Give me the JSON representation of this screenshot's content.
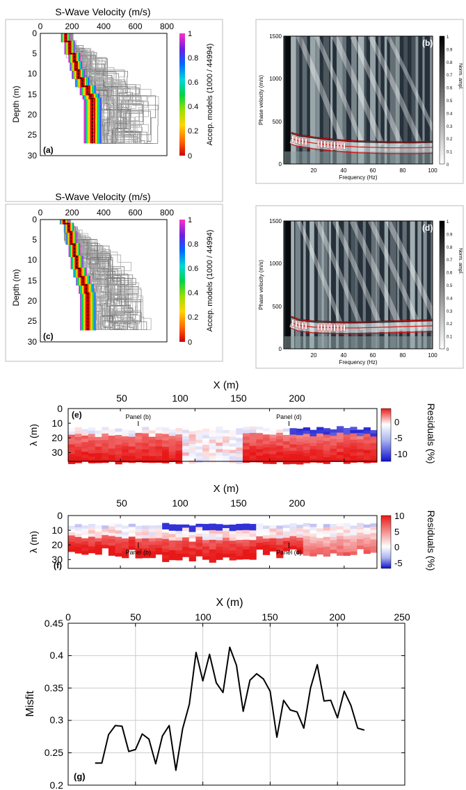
{
  "colors": {
    "ink": "#000000",
    "grid": "#cccccc",
    "model_gray": "#a9a9a9",
    "pick_red": "#e01010"
  },
  "chart_data": [
    {
      "panel": "a",
      "type": "line",
      "title": "S-Wave Velocity (m/s)",
      "ylabel": "Depth (m)",
      "xticks": [
        "0",
        "200",
        "400",
        "600",
        "800"
      ],
      "yticks": [
        "0",
        "5",
        "10",
        "15",
        "20",
        "25",
        "30"
      ],
      "xlim": [
        0,
        800
      ],
      "ylim": [
        0,
        30
      ],
      "colorbar": {
        "label": "Accep. models (1000 / 44994)",
        "ticks": [
          "1",
          "0.8",
          "0.6",
          "0.4",
          "0.2",
          "0"
        ]
      },
      "best_profile": {
        "depth": [
          0,
          2,
          5,
          7,
          9,
          11,
          13,
          15,
          16,
          27
        ],
        "vs": [
          160,
          185,
          215,
          225,
          240,
          265,
          300,
          320,
          330,
          330
        ]
      },
      "label": "(a)"
    },
    {
      "panel": "b",
      "type": "heatmap",
      "xlabel": "Frequency (Hz)",
      "ylabel": "Phase velocity (m/s)",
      "xticks": [
        "20",
        "40",
        "60",
        "80",
        "100"
      ],
      "yticks": [
        "0",
        "500",
        "1000",
        "1500"
      ],
      "xlim": [
        0,
        100
      ],
      "ylim": [
        0,
        1500
      ],
      "colorbar": {
        "label": "Norm. ampl.",
        "ticks": [
          "1",
          "0.9",
          "0.8",
          "0.7",
          "0.6",
          "0.5",
          "0.4",
          "0.3",
          "0.2",
          "0.1",
          "0"
        ]
      },
      "picks": {
        "frequency": [
          5,
          10,
          15,
          20,
          30,
          40,
          50,
          60,
          70,
          80,
          90,
          100
        ],
        "velocity": [
          300,
          270,
          260,
          245,
          225,
          210,
          200,
          195,
          190,
          190,
          190,
          195
        ]
      },
      "label": "(b)"
    },
    {
      "panel": "c",
      "type": "line",
      "title": "S-Wave Velocity (m/s)",
      "ylabel": "Depth (m)",
      "xticks": [
        "0",
        "200",
        "400",
        "600",
        "800"
      ],
      "yticks": [
        "0",
        "5",
        "10",
        "15",
        "20",
        "25",
        "30"
      ],
      "xlim": [
        0,
        800
      ],
      "ylim": [
        0,
        30
      ],
      "colorbar": {
        "label": "Accep. models (1000 / 44994)",
        "ticks": [
          "1",
          "0.8",
          "0.6",
          "0.4",
          "0.2",
          "0"
        ]
      },
      "best_profile": {
        "depth": [
          0,
          1,
          3,
          6,
          9,
          12,
          14,
          16,
          18,
          27
        ],
        "vs": [
          150,
          180,
          195,
          215,
          230,
          250,
          270,
          290,
          300,
          305
        ]
      },
      "label": "(c)"
    },
    {
      "panel": "d",
      "type": "heatmap",
      "xlabel": "Frequency (Hz)",
      "ylabel": "Phase velocity (m/s)",
      "xticks": [
        "20",
        "40",
        "60",
        "80",
        "100"
      ],
      "yticks": [
        "0",
        "500",
        "1000",
        "1500"
      ],
      "xlim": [
        0,
        100
      ],
      "ylim": [
        0,
        1500
      ],
      "colorbar": {
        "label": "Norm. ampl.",
        "ticks": [
          "1",
          "0.9",
          "0.8",
          "0.7",
          "0.6",
          "0.5",
          "0.4",
          "0.3",
          "0.2",
          "0.1",
          "0"
        ]
      },
      "picks": {
        "frequency": [
          5,
          10,
          15,
          20,
          30,
          40,
          50,
          60,
          70,
          80,
          90,
          100
        ],
        "velocity": [
          310,
          275,
          265,
          255,
          250,
          245,
          245,
          250,
          255,
          260,
          265,
          270
        ]
      },
      "label": "(d)"
    },
    {
      "panel": "e",
      "type": "heatmap",
      "xlabel": "X (m)",
      "ylabel": "λ (m)",
      "xticks": [
        "50",
        "100",
        "150",
        "200"
      ],
      "yticks": [
        "0",
        "10",
        "20",
        "30"
      ],
      "xlim": [
        15,
        222
      ],
      "ylim": [
        0,
        36
      ],
      "colorbar": {
        "label": "Residuals (%)",
        "ticks": [
          "0",
          "-5",
          "-10"
        ],
        "range": [
          -12,
          5
        ]
      },
      "annotations": [
        {
          "text": "Panel (b)",
          "x": 62
        },
        {
          "text": "Panel (d)",
          "x": 163
        }
      ],
      "label": "(e)"
    },
    {
      "panel": "f",
      "type": "heatmap",
      "xlabel": "X (m)",
      "ylabel": "λ (m)",
      "xticks": [
        "50",
        "100",
        "150",
        "200"
      ],
      "yticks": [
        "0",
        "10",
        "20",
        "30"
      ],
      "xlim": [
        15,
        222
      ],
      "ylim": [
        0,
        36
      ],
      "colorbar": {
        "label": "Residuals (%)",
        "ticks": [
          "10",
          "5",
          "0",
          "-5"
        ],
        "range": [
          -7,
          10
        ]
      },
      "annotations": [
        {
          "text": "Panel (b)",
          "x": 62
        },
        {
          "text": "Panel (d)",
          "x": 163
        }
      ],
      "label": "(f)"
    },
    {
      "panel": "g",
      "type": "line",
      "xlabel": "X (m)",
      "ylabel": "Misfit",
      "xticks": [
        "0",
        "50",
        "100",
        "150",
        "200",
        "250"
      ],
      "yticks": [
        "0.2",
        "0.25",
        "0.3",
        "0.35",
        "0.4",
        "0.45"
      ],
      "xlim": [
        0,
        250
      ],
      "ylim": [
        0.2,
        0.45
      ],
      "grid": true,
      "series": [
        {
          "x": [
            20,
            25,
            30,
            35,
            40,
            45,
            50,
            55,
            60,
            65,
            70,
            75,
            80,
            85,
            90,
            95,
            100,
            105,
            110,
            115,
            120,
            125,
            130,
            135,
            140,
            145,
            150,
            155,
            160,
            165,
            170,
            175,
            180,
            185,
            190,
            195,
            200,
            205,
            210,
            215,
            220
          ],
          "values": [
            0.234,
            0.234,
            0.278,
            0.292,
            0.291,
            0.252,
            0.255,
            0.279,
            0.271,
            0.233,
            0.276,
            0.292,
            0.223,
            0.287,
            0.325,
            0.405,
            0.361,
            0.402,
            0.358,
            0.343,
            0.413,
            0.385,
            0.314,
            0.362,
            0.372,
            0.364,
            0.345,
            0.274,
            0.331,
            0.316,
            0.313,
            0.288,
            0.35,
            0.386,
            0.33,
            0.331,
            0.304,
            0.345,
            0.323,
            0.288,
            0.285
          ]
        }
      ],
      "label": "(g)"
    }
  ]
}
